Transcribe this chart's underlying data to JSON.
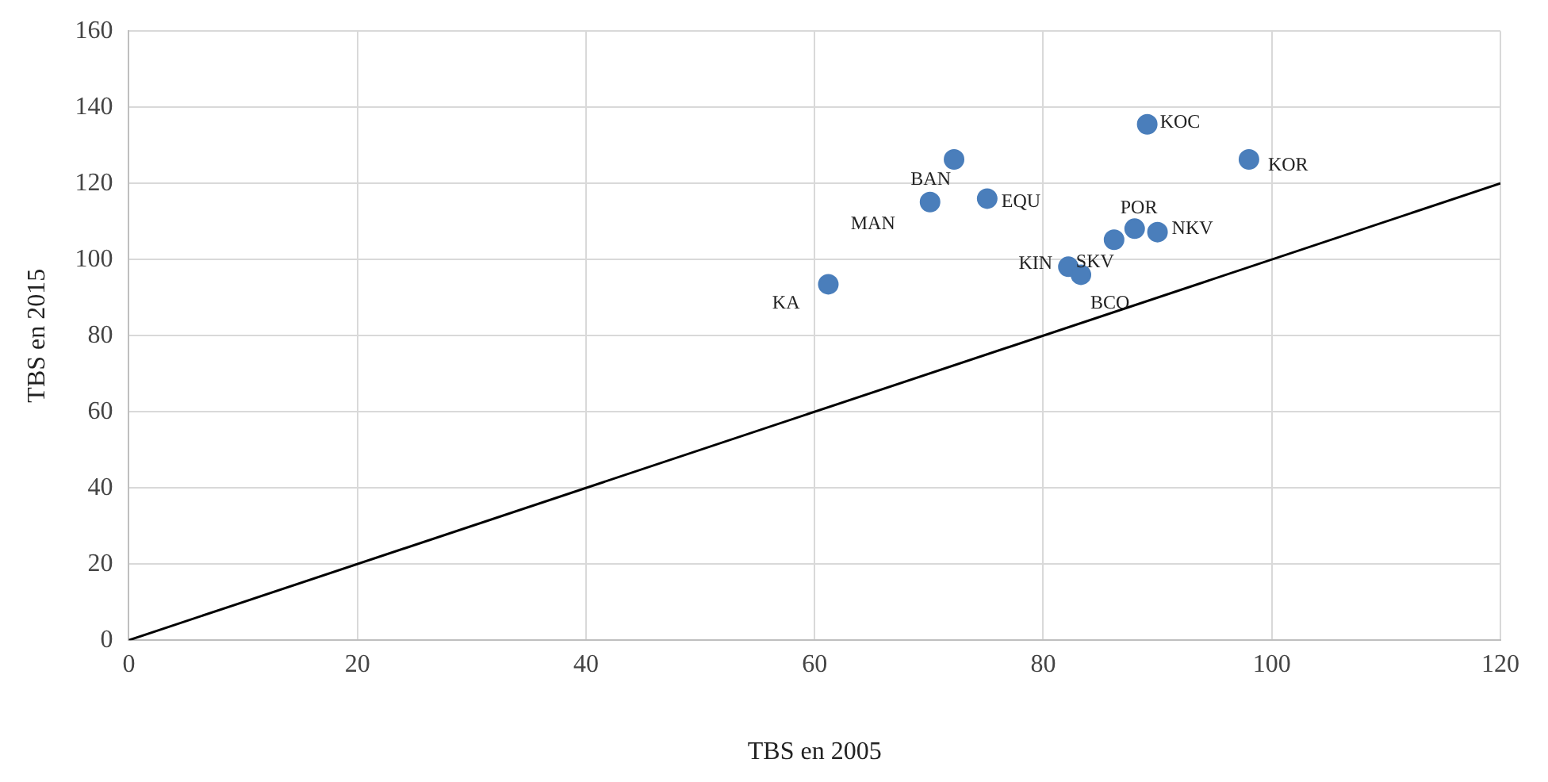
{
  "chart_data": {
    "type": "scatter",
    "xlabel": "TBS en 2005",
    "ylabel": "TBS en 2015",
    "xlim": [
      0,
      120
    ],
    "xticks": [
      0,
      20,
      40,
      60,
      80,
      100,
      120
    ],
    "ylim": [
      0,
      160
    ],
    "yticks": [
      0,
      20,
      40,
      60,
      80,
      100,
      120,
      140,
      160
    ],
    "grid": true,
    "marker": "circle",
    "series": [
      {
        "color": "#4a7ebb",
        "x": [
          61.2,
          72.2,
          70.1,
          75.1,
          89.1,
          98.0,
          88.0,
          90.0,
          86.2,
          82.2,
          83.3
        ],
        "values": [
          93.5,
          126.3,
          115.1,
          116.0,
          135.5,
          126.3,
          108.1,
          107.2,
          105.2,
          98.1,
          96.0
        ],
        "value_labels": [
          "KA",
          "BAN",
          "MAN",
          "EQU",
          "KOC",
          "KOR",
          "POR",
          "NKV",
          "SKV",
          "KIN",
          "BCO"
        ]
      },
      {
        "type": "line",
        "color": "#000000",
        "x": [
          0,
          120
        ],
        "values": [
          0,
          120
        ],
        "marker": "none"
      }
    ]
  }
}
